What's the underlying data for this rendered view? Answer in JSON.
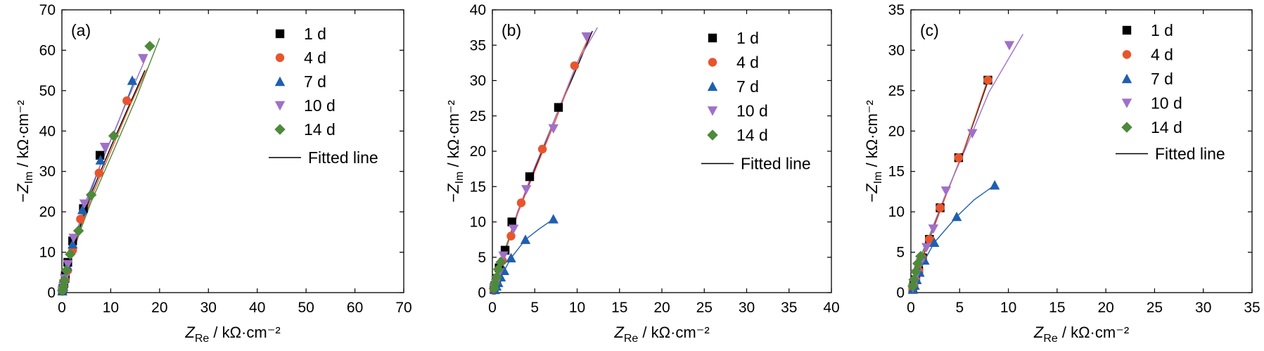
{
  "chart_data": [
    {
      "type": "scatter",
      "panel_label": "(a)",
      "xlabel": "Z_Re / kΩ·cm⁻²",
      "ylabel": "−Z_Im / kΩ·cm⁻²",
      "xlim": [
        0,
        70
      ],
      "ylim": [
        0,
        70
      ],
      "xticks": [
        0,
        10,
        20,
        30,
        40,
        50,
        60,
        70
      ],
      "yticks": [
        0,
        10,
        20,
        30,
        40,
        50,
        60,
        70
      ],
      "legend_position": "top-right",
      "fitted_label": "Fitted line",
      "series": [
        {
          "name": "1 d",
          "marker": "square",
          "color": "#000000",
          "x": [
            0.1,
            0.2,
            0.4,
            0.7,
            1.2,
            2.2,
            4.4,
            7.8
          ],
          "y": [
            0.4,
            1.0,
            2.2,
            4.2,
            7.5,
            12.8,
            20.8,
            34.0
          ],
          "fit": [
            [
              0,
              0
            ],
            [
              1.2,
              6.0
            ],
            [
              3,
              13.5
            ],
            [
              6,
              24.5
            ],
            [
              10,
              36.0
            ],
            [
              14,
              47.0
            ],
            [
              17,
              55.0
            ]
          ]
        },
        {
          "name": "4 d",
          "marker": "circle",
          "color": "#e8552d",
          "x": [
            0.1,
            0.3,
            0.7,
            1.2,
            2.2,
            3.8,
            7.6,
            13.3
          ],
          "y": [
            0.3,
            1.2,
            3.0,
            5.5,
            10.5,
            18.2,
            29.6,
            47.5
          ],
          "fit": [
            [
              0,
              0
            ],
            [
              1.2,
              5.5
            ],
            [
              3,
              12.5
            ],
            [
              6,
              23.5
            ],
            [
              10,
              35.0
            ],
            [
              14,
              46.5
            ],
            [
              17.5,
              55.5
            ]
          ]
        },
        {
          "name": "7 d",
          "marker": "triangle-up",
          "color": "#1f5fb0",
          "x": [
            0.1,
            0.3,
            0.6,
            1.1,
            2.2,
            4.2,
            7.9,
            14.4
          ],
          "y": [
            0.4,
            1.5,
            3.5,
            6.5,
            12.0,
            20.5,
            32.8,
            52.5
          ],
          "fit": [
            [
              0,
              0
            ],
            [
              1.1,
              6.0
            ],
            [
              2.5,
              12.0
            ],
            [
              5,
              22.0
            ],
            [
              8,
              32.0
            ],
            [
              11.5,
              42.0
            ],
            [
              15,
              53.0
            ]
          ]
        },
        {
          "name": "10 d",
          "marker": "triangle-down",
          "color": "#a070c8",
          "x": [
            0.1,
            0.3,
            0.6,
            1.2,
            2.4,
            4.6,
            8.8,
            16.6
          ],
          "y": [
            0.4,
            1.5,
            3.5,
            7.0,
            13.5,
            22.0,
            36.0,
            58.0
          ],
          "fit": [
            [
              0,
              0
            ],
            [
              1.2,
              6.5
            ],
            [
              2.5,
              13.0
            ],
            [
              5,
              23.0
            ],
            [
              9,
              35.0
            ],
            [
              13,
              46.5
            ],
            [
              17.5,
              59.0
            ]
          ]
        },
        {
          "name": "14 d",
          "marker": "diamond",
          "color": "#4e8a3a",
          "x": [
            0.1,
            0.3,
            0.5,
            0.9,
            1.7,
            3.4,
            6.0,
            10.6,
            18.0
          ],
          "y": [
            0.5,
            1.6,
            3.0,
            5.5,
            9.5,
            15.3,
            24.2,
            38.8,
            61.0
          ],
          "fit": [
            [
              0,
              0
            ],
            [
              1.5,
              8.0
            ],
            [
              3.5,
              14.5
            ],
            [
              6,
              22.5
            ],
            [
              10,
              33.5
            ],
            [
              15,
              47.5
            ],
            [
              20,
              63.0
            ]
          ]
        }
      ]
    },
    {
      "type": "scatter",
      "panel_label": "(b)",
      "xlabel": "Z_Re / kΩ·cm⁻²",
      "ylabel": "−Z_Im / kΩ·cm⁻²",
      "xlim": [
        0,
        40
      ],
      "ylim": [
        0,
        40
      ],
      "xticks": [
        0,
        5,
        10,
        15,
        20,
        25,
        30,
        35,
        40
      ],
      "yticks": [
        0,
        5,
        10,
        15,
        20,
        25,
        30,
        35,
        40
      ],
      "legend_position": "top-right",
      "fitted_label": "Fitted line",
      "series": [
        {
          "name": "1 d",
          "marker": "square",
          "color": "#000000",
          "x": [
            0.2,
            0.3,
            0.5,
            0.8,
            1.5,
            2.3,
            4.4,
            7.8
          ],
          "y": [
            0.5,
            1.0,
            2.0,
            3.5,
            6.0,
            10.0,
            16.4,
            26.2
          ],
          "fit": [
            [
              0,
              0
            ],
            [
              1.5,
              6.0
            ],
            [
              3,
              11.5
            ],
            [
              5,
              17.5
            ],
            [
              7.5,
              25.0
            ],
            [
              9.5,
              30.5
            ],
            [
              11.8,
              37.0
            ]
          ]
        },
        {
          "name": "4 d",
          "marker": "circle",
          "color": "#e8552d",
          "x": [
            0.2,
            0.4,
            0.7,
            1.2,
            2.2,
            3.4,
            5.9,
            9.7
          ],
          "y": [
            0.3,
            1.0,
            2.3,
            4.5,
            8.0,
            12.7,
            20.3,
            32.1
          ],
          "fit": [
            [
              0,
              0
            ],
            [
              1.5,
              5.7
            ],
            [
              3,
              11.2
            ],
            [
              5,
              17.2
            ],
            [
              7.5,
              24.5
            ],
            [
              10,
              32.5
            ],
            [
              11.5,
              36.5
            ]
          ]
        },
        {
          "name": "7 d",
          "marker": "triangle-up",
          "color": "#1f5fb0",
          "x": [
            0.3,
            0.5,
            0.7,
            1.0,
            1.4,
            2.2,
            3.9,
            7.2
          ],
          "y": [
            0.4,
            0.9,
            1.4,
            2.2,
            3.1,
            4.9,
            7.5,
            10.4
          ],
          "fit": [
            [
              0,
              0
            ],
            [
              0.5,
              0.9
            ],
            [
              1.0,
              2.2
            ],
            [
              2.2,
              4.9
            ],
            [
              3.9,
              7.5
            ],
            [
              5.5,
              9.0
            ],
            [
              7.2,
              10.4
            ]
          ]
        },
        {
          "name": "10 d",
          "marker": "triangle-down",
          "color": "#a070c8",
          "x": [
            0.2,
            0.4,
            0.8,
            1.3,
            2.5,
            4.0,
            7.2,
            11.1
          ],
          "y": [
            0.6,
            1.3,
            2.8,
            5.2,
            9.0,
            14.6,
            23.2,
            36.2
          ],
          "fit": [
            [
              0,
              0
            ],
            [
              1.5,
              5.8
            ],
            [
              3,
              11.5
            ],
            [
              5,
              17.8
            ],
            [
              7.5,
              25.0
            ],
            [
              10,
              32.5
            ],
            [
              12.4,
              37.5
            ]
          ]
        },
        {
          "name": "14 d",
          "marker": "diamond",
          "color": "#4e8a3a",
          "x": [
            0.2,
            0.3,
            0.5,
            0.7,
            1.0
          ],
          "y": [
            0.6,
            1.3,
            2.2,
            3.3,
            4.3
          ],
          "fit": [
            [
              0,
              0
            ],
            [
              0.5,
              2.2
            ],
            [
              1.0,
              4.3
            ],
            [
              1.5,
              6.2
            ],
            [
              2.5,
              9.5
            ]
          ]
        }
      ]
    },
    {
      "type": "scatter",
      "panel_label": "(c)",
      "xlabel": "Z_Re / kΩ·cm⁻²",
      "ylabel": "−Z_Im / kΩ·cm⁻²",
      "xlim": [
        0,
        35
      ],
      "ylim": [
        0,
        35
      ],
      "xticks": [
        0,
        5,
        10,
        15,
        20,
        25,
        30,
        35
      ],
      "yticks": [
        0,
        5,
        10,
        15,
        20,
        25,
        30,
        35
      ],
      "legend_position": "top-right",
      "fitted_label": "Fitted line",
      "series": [
        {
          "name": "1 d",
          "marker": "square",
          "color": "#000000",
          "x": [
            0.2,
            0.3,
            0.5,
            0.8,
            1.2,
            1.9,
            3.0,
            4.9,
            7.9
          ],
          "y": [
            0.4,
            0.9,
            1.6,
            2.7,
            4.3,
            6.6,
            10.5,
            16.7,
            26.3
          ],
          "fit": [
            [
              0,
              0
            ],
            [
              1,
              3.6
            ],
            [
              2,
              7.0
            ],
            [
              3.5,
              11.8
            ],
            [
              5.5,
              17.8
            ],
            [
              8,
              26.5
            ]
          ]
        },
        {
          "name": "4 d",
          "marker": "circle",
          "color": "#e8552d",
          "x": [
            0.2,
            0.3,
            0.5,
            0.8,
            1.2,
            1.9,
            3.0,
            4.9,
            7.9
          ],
          "y": [
            0.4,
            0.9,
            1.6,
            2.7,
            4.3,
            6.6,
            10.5,
            16.7,
            26.3
          ],
          "fit": [
            [
              0,
              0
            ],
            [
              1,
              3.5
            ],
            [
              2,
              6.9
            ],
            [
              3.5,
              11.7
            ],
            [
              5.5,
              17.9
            ],
            [
              8,
              26.8
            ]
          ]
        },
        {
          "name": "7 d",
          "marker": "triangle-up",
          "color": "#1f5fb0",
          "x": [
            0.2,
            0.4,
            0.6,
            0.9,
            1.4,
            2.4,
            4.7,
            8.6
          ],
          "y": [
            0.4,
            0.9,
            1.6,
            2.5,
            4.0,
            6.2,
            9.4,
            13.3
          ],
          "fit": [
            [
              0,
              0
            ],
            [
              0.6,
              1.6
            ],
            [
              1.4,
              4.0
            ],
            [
              2.4,
              6.2
            ],
            [
              4.7,
              9.4
            ],
            [
              6.5,
              11.5
            ],
            [
              8.6,
              13.3
            ]
          ]
        },
        {
          "name": "10 d",
          "marker": "triangle-down",
          "color": "#a070c8",
          "x": [
            0.2,
            0.4,
            0.6,
            1.0,
            1.6,
            2.3,
            3.6,
            6.3,
            10.1
          ],
          "y": [
            0.6,
            1.3,
            2.3,
            3.7,
            5.6,
            7.9,
            12.6,
            19.7,
            30.6
          ],
          "fit": [
            [
              0,
              0
            ],
            [
              1,
              3.9
            ],
            [
              2,
              7.4
            ],
            [
              3.5,
              12.0
            ],
            [
              5.5,
              17.5
            ],
            [
              8,
              24.8
            ],
            [
              11.5,
              32.0
            ]
          ]
        },
        {
          "name": "14 d",
          "marker": "diamond",
          "color": "#4e8a3a",
          "x": [
            0.2,
            0.3,
            0.5,
            0.7,
            1.0
          ],
          "y": [
            0.8,
            1.6,
            2.6,
            3.6,
            4.5
          ],
          "fit": [
            [
              0,
              0
            ],
            [
              0.5,
              2.6
            ],
            [
              1.0,
              4.5
            ],
            [
              1.5,
              5.9
            ],
            [
              2.3,
              7.8
            ]
          ]
        }
      ]
    }
  ]
}
